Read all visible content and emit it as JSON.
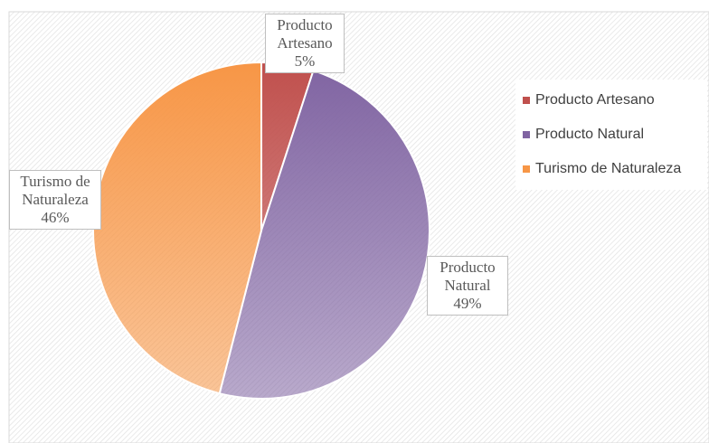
{
  "chart_data": {
    "type": "pie",
    "categories": [
      "Producto Artesano",
      "Producto Natural",
      "Turismo de Naturaleza"
    ],
    "values": [
      5,
      49,
      46
    ],
    "value_labels": [
      "5%",
      "49%",
      "46%"
    ],
    "colors": [
      "#c0504d",
      "#8064a2",
      "#f79646"
    ],
    "legend": "right"
  }
}
